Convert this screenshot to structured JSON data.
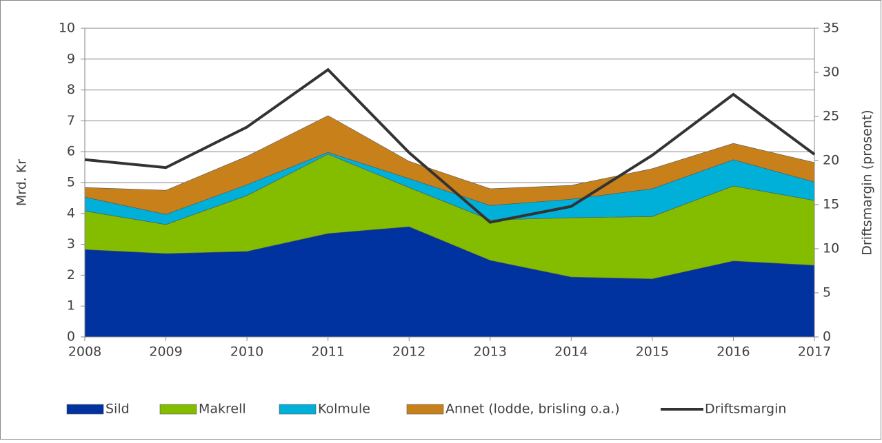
{
  "chart_data": {
    "type": "stacked_area_line",
    "categories": [
      "2008",
      "2009",
      "2010",
      "2011",
      "2012",
      "2013",
      "2014",
      "2015",
      "2016",
      "2017"
    ],
    "series": [
      {
        "name": "Sild",
        "color": "#0033a0",
        "values": [
          2.83,
          2.7,
          2.77,
          3.35,
          3.57,
          2.48,
          1.94,
          1.88,
          2.46,
          2.32
        ]
      },
      {
        "name": "Makrell",
        "color": "#84bd00",
        "values": [
          1.25,
          0.94,
          1.81,
          2.57,
          1.27,
          1.31,
          1.92,
          2.02,
          2.43,
          2.1
        ]
      },
      {
        "name": "Kolmule",
        "color": "#00b0d8",
        "values": [
          0.45,
          0.33,
          0.35,
          0.06,
          0.29,
          0.47,
          0.6,
          0.9,
          0.85,
          0.6
        ]
      },
      {
        "name": "Annet (lodde, brisling o.a.)",
        "color": "#c8811a",
        "values": [
          0.31,
          0.78,
          0.92,
          1.19,
          0.56,
          0.54,
          0.45,
          0.65,
          0.53,
          0.63
        ]
      },
      {
        "name": "Driftsmargin",
        "color": "#333333",
        "axis": "y2",
        "values": [
          20.1,
          19.2,
          23.8,
          30.3,
          20.9,
          13.0,
          14.8,
          20.6,
          27.5,
          20.7
        ]
      }
    ],
    "ylabel": "Mrd. Kr",
    "y2label": "Driftsmargin (prosent)",
    "ylim": [
      0,
      10
    ],
    "yticks": [
      0,
      1,
      2,
      3,
      4,
      5,
      6,
      7,
      8,
      9,
      10
    ],
    "y2lim": [
      0,
      35
    ],
    "y2ticks": [
      0,
      5,
      10,
      15,
      20,
      25,
      30,
      35
    ],
    "grid": true
  }
}
